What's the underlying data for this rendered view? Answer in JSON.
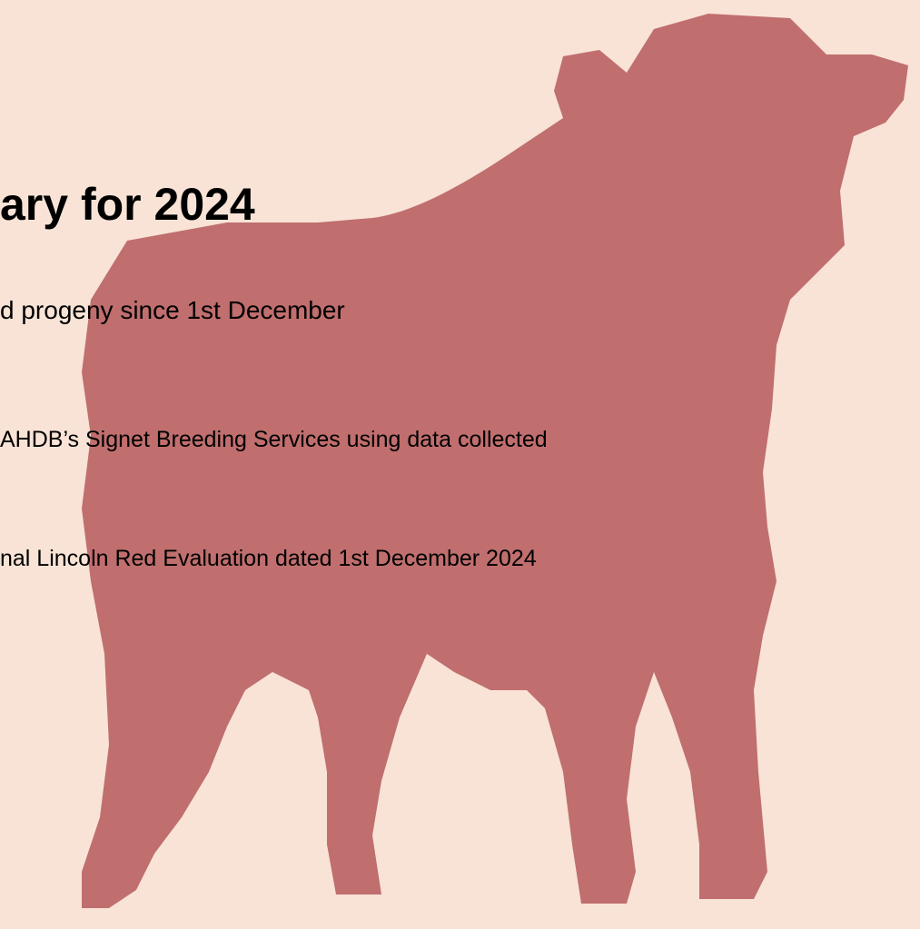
{
  "title": "ary for 2024",
  "lines": [
    "d progeny since 1st December",
    "AHDB’s Signet Breeding Services using data collected",
    "nal Lincoln Red Evaluation dated 1st December 2024"
  ]
}
